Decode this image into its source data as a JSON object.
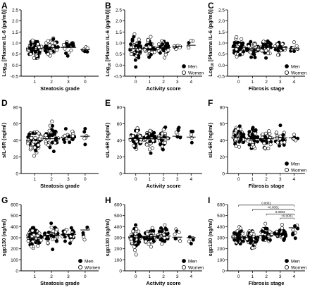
{
  "figure": {
    "legend_labels": [
      "Men",
      "Women"
    ]
  },
  "chart_data": [
    {
      "id": "A",
      "type": "scatter",
      "ylabel": "Log10 [Plasma IL-6 (pg/ml)]",
      "ylabel_base": "Log",
      "ylabel_sub": "10",
      "ylabel_rest": " [Plasma IL-6 (pg/ml)]",
      "xlabel": "Steatosis grade",
      "categories": [
        "1",
        "2",
        "3",
        "0"
      ],
      "ylim": [
        -0.5,
        2.5
      ],
      "yticks": [
        "-0.5",
        "0.0",
        "0.5",
        "1.0",
        "1.5",
        "2.0",
        "2.5"
      ],
      "ytick_values": [
        -0.5,
        0,
        0.5,
        1,
        1.5,
        2,
        2.5
      ],
      "legend": false,
      "n": [
        70,
        45,
        22,
        6
      ],
      "medians": [
        0.75,
        0.8,
        0.8,
        0.7
      ],
      "spread": [
        0.35,
        0.33,
        0.28,
        0.15
      ],
      "sig": []
    },
    {
      "id": "B",
      "type": "scatter",
      "ylabel": "Log10 [Plasma IL-6 (pg/ml)]",
      "ylabel_base": "Log",
      "ylabel_sub": "10",
      "ylabel_rest": " [Plasma IL-6 (pg/ml)]",
      "xlabel": "Activity score",
      "categories": [
        "0",
        "1",
        "2",
        "3",
        "4"
      ],
      "ylim": [
        -0.5,
        2.5
      ],
      "yticks": [
        "-0.5",
        "0.0",
        "0.5",
        "1.0",
        "1.5",
        "2.0",
        "2.5"
      ],
      "ytick_values": [
        -0.5,
        0,
        0.5,
        1,
        1.5,
        2,
        2.5
      ],
      "legend": true,
      "n": [
        55,
        45,
        35,
        7,
        5
      ],
      "medians": [
        0.75,
        0.75,
        0.8,
        0.85,
        0.9
      ],
      "spread": [
        0.4,
        0.32,
        0.27,
        0.12,
        0.2
      ],
      "sig": []
    },
    {
      "id": "C",
      "type": "scatter",
      "ylabel": "Log10 [Plasma IL-6 (pg/ml)]",
      "ylabel_base": "Log",
      "ylabel_sub": "10",
      "ylabel_rest": " [Plasma IL-6 (pg/ml)]",
      "xlabel": "Fibrosis stage",
      "categories": [
        "0",
        "1",
        "2",
        "3",
        "4"
      ],
      "ylim": [
        -0.5,
        2.5
      ],
      "yticks": [
        "-0.5",
        "0.0",
        "0.5",
        "1.0",
        "1.5",
        "2.0",
        "2.5"
      ],
      "ytick_values": [
        -0.5,
        0,
        0.5,
        1,
        1.5,
        2,
        2.5
      ],
      "legend": true,
      "n": [
        50,
        45,
        35,
        25,
        9
      ],
      "medians": [
        0.8,
        0.75,
        0.8,
        0.8,
        0.75
      ],
      "spread": [
        0.35,
        0.32,
        0.3,
        0.25,
        0.2
      ],
      "sig": []
    },
    {
      "id": "D",
      "type": "scatter",
      "ylabel": "sIL-6R (ng/ml)",
      "xlabel": "Steatosis grade",
      "categories": [
        "1",
        "2",
        "3",
        "0"
      ],
      "ylim": [
        0,
        80
      ],
      "yticks": [
        "0",
        "20",
        "40",
        "60",
        "80"
      ],
      "ytick_values": [
        0,
        20,
        40,
        60,
        80
      ],
      "legend": false,
      "n": [
        70,
        45,
        22,
        6
      ],
      "medians": [
        40,
        42,
        43,
        45
      ],
      "spread": [
        11,
        11,
        9,
        8
      ],
      "sig": []
    },
    {
      "id": "E",
      "type": "scatter",
      "ylabel": "sIL-6R (ng/ml)",
      "xlabel": "Activity score",
      "categories": [
        "0",
        "1",
        "2",
        "3",
        "4"
      ],
      "ylim": [
        0,
        80
      ],
      "yticks": [
        "0",
        "20",
        "40",
        "60",
        "80"
      ],
      "ytick_values": [
        0,
        20,
        40,
        60,
        80
      ],
      "legend": false,
      "n": [
        55,
        45,
        35,
        7,
        5
      ],
      "medians": [
        42,
        42,
        43,
        45,
        44
      ],
      "spread": [
        10,
        10,
        9,
        12,
        11
      ],
      "sig": []
    },
    {
      "id": "F",
      "type": "scatter",
      "ylabel": "sIL-6R (ng/ml)",
      "xlabel": "Fibrosis stage",
      "categories": [
        "0",
        "1",
        "2",
        "3",
        "4"
      ],
      "ylim": [
        0,
        80
      ],
      "yticks": [
        "0",
        "20",
        "40",
        "60",
        "80"
      ],
      "ytick_values": [
        0,
        20,
        40,
        60,
        80
      ],
      "legend": true,
      "n": [
        50,
        45,
        35,
        25,
        9
      ],
      "medians": [
        43,
        42,
        42,
        43,
        43
      ],
      "spread": [
        10,
        10,
        9,
        11,
        6
      ],
      "sig": []
    },
    {
      "id": "G",
      "type": "scatter",
      "ylabel": "sgp130 (ng/ml)",
      "xlabel": "Steatosis grade",
      "categories": [
        "1",
        "2",
        "3",
        "0"
      ],
      "ylim": [
        0,
        600
      ],
      "yticks": [
        "0",
        "100",
        "200",
        "300",
        "400",
        "500",
        "600"
      ],
      "ytick_values": [
        0,
        100,
        200,
        300,
        400,
        500,
        600
      ],
      "legend": true,
      "n": [
        70,
        45,
        22,
        6
      ],
      "medians": [
        300,
        320,
        330,
        370
      ],
      "spread": [
        70,
        70,
        60,
        90
      ],
      "sig": []
    },
    {
      "id": "H",
      "type": "scatter",
      "ylabel": "sgp130 (ng/ml)",
      "xlabel": "Activity score",
      "categories": [
        "0",
        "1",
        "2",
        "3",
        "4"
      ],
      "ylim": [
        0,
        600
      ],
      "yticks": [
        "0",
        "100",
        "200",
        "300",
        "400",
        "500",
        "600"
      ],
      "ytick_values": [
        0,
        100,
        200,
        300,
        400,
        500,
        600
      ],
      "legend": true,
      "n": [
        55,
        45,
        35,
        7,
        5
      ],
      "medians": [
        305,
        310,
        315,
        305,
        300
      ],
      "spread": [
        70,
        65,
        60,
        60,
        50
      ],
      "sig": []
    },
    {
      "id": "I",
      "type": "scatter",
      "ylabel": "sgp130 (ng/ml)",
      "xlabel": "Fibrosis stage",
      "categories": [
        "0",
        "1",
        "2",
        "3",
        "4"
      ],
      "ylim": [
        0,
        600
      ],
      "yticks": [
        "0",
        "100",
        "200",
        "300",
        "400",
        "500",
        "600"
      ],
      "ytick_values": [
        0,
        100,
        200,
        300,
        400,
        500,
        600
      ],
      "legend": true,
      "n": [
        50,
        45,
        35,
        25,
        9
      ],
      "medians": [
        300,
        300,
        320,
        330,
        390
      ],
      "spread": [
        60,
        60,
        60,
        65,
        70
      ],
      "sig": [
        {
          "from": 0,
          "to": 4,
          "label": "0.0001",
          "y": 595
        },
        {
          "from": 1,
          "to": 4,
          "label": "<0.0001",
          "y": 555
        },
        {
          "from": 2,
          "to": 4,
          "label": "0.0003",
          "y": 515
        },
        {
          "from": 3,
          "to": 4,
          "label": "<0.0001",
          "y": 478
        }
      ]
    }
  ]
}
